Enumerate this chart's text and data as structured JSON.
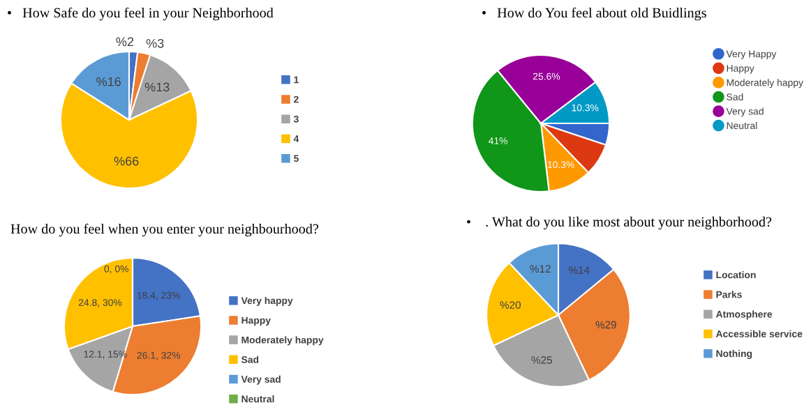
{
  "chart_data": [
    {
      "type": "pie",
      "title": "•   How Safe do you feel in your Neighborhood",
      "categories": [
        "1",
        "2",
        "3",
        "4",
        "5"
      ],
      "values": [
        2,
        3,
        13,
        66,
        16
      ],
      "colors": [
        "#4472c4",
        "#ed7d31",
        "#a5a5a5",
        "#ffc000",
        "#5b9bd5"
      ],
      "value_labels": [
        "%2",
        "%3",
        "%13",
        "%66",
        "%16"
      ],
      "legend": "right"
    },
    {
      "type": "pie",
      "title": "•   How do You feel about old Buidlings",
      "categories": [
        "Very Happy",
        "Happy",
        "Moderately happy",
        "Sad",
        "Very sad",
        "Neutral"
      ],
      "values": [
        5.1,
        7.7,
        10.3,
        41,
        25.6,
        10.3
      ],
      "colors": [
        "#3366cc",
        "#dc3912",
        "#ff9900",
        "#109618",
        "#990099",
        "#0099c6"
      ],
      "value_labels": [
        null,
        null,
        "10.3%",
        "41%",
        "25.6%",
        "10.3%"
      ],
      "legend": "right"
    },
    {
      "type": "pie",
      "title": "How do you feel when you enter your neighbourhood?",
      "categories": [
        "Very happy",
        "Happy",
        "Moderately happy",
        "Sad",
        "Very sad",
        "Neutral"
      ],
      "values": [
        18.4,
        26.1,
        12.1,
        24.8,
        0,
        0
      ],
      "colors": [
        "#4472c4",
        "#ed7d31",
        "#a5a5a5",
        "#ffc000",
        "#5b9bd5",
        "#70ad47"
      ],
      "value_labels": [
        "18.4, 23%",
        "26.1, 32%",
        "12.1, 15%",
        "24.8, 30%",
        "0, 0%",
        null
      ],
      "legend": "right"
    },
    {
      "type": "pie",
      "title": "•    . What do you like most about your neighborhood?",
      "categories": [
        "Location",
        "Parks",
        "Atmosphere",
        "Accessible service",
        "Nothing"
      ],
      "values": [
        14,
        29,
        25,
        20,
        12
      ],
      "colors": [
        "#4472c4",
        "#ed7d31",
        "#a5a5a5",
        "#ffc000",
        "#5b9bd5"
      ],
      "value_labels": [
        "%14",
        "%29",
        "%25",
        "%20",
        "%12"
      ],
      "legend": "right"
    }
  ]
}
